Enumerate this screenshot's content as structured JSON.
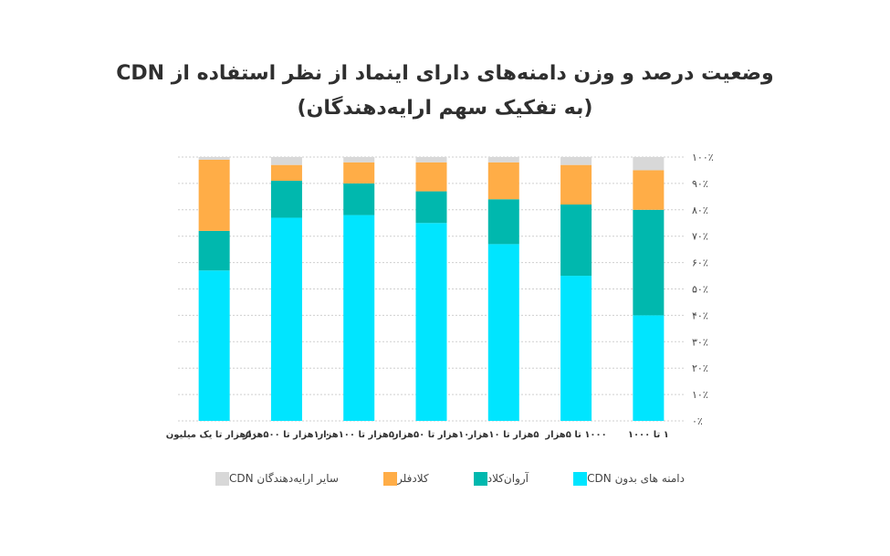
{
  "chart_data": {
    "type": "bar",
    "stacked": true,
    "title": [
      "وضعیت درصد و وزن دامنه‌های دارای اینماد از نظر استفاده از CDN",
      "(به تفکیک سهم ارایه‌دهندگان)"
    ],
    "categories": [
      "۵۰۰هزار تا یک میلیون",
      "۱۰۰هزار تا ۵۰۰هزار",
      "۵۰هزار تا ۱۰۰هزار",
      "۱۰هزار تا ۵۰هزار",
      "۵هزار تا ۱۰هزار",
      "۱۰۰۰ تا ۵هزار",
      "۱ تا ۱۰۰۰"
    ],
    "y_tick_labels": [
      "۰٪",
      "۱۰٪",
      "۲۰٪",
      "۳۰٪",
      "۴۰٪",
      "۵۰٪",
      "۶۰٪",
      "۷۰٪",
      "۸۰٪",
      "۹۰٪",
      "۱۰۰٪"
    ],
    "ylim": [
      0,
      100
    ],
    "grid": true,
    "legend_position": "bottom",
    "series": [
      {
        "name": "دامنه های بدون CDN",
        "color": "#00E5FF",
        "values": [
          57,
          77,
          78,
          75,
          67,
          55,
          40
        ]
      },
      {
        "name": "آروان‌کلاد",
        "color": "#00B8AE",
        "values": [
          15,
          14,
          12,
          12,
          17,
          27,
          40
        ]
      },
      {
        "name": "کلادفلر",
        "color": "#FFAD47",
        "values": [
          27,
          6,
          8,
          11,
          14,
          15,
          15
        ]
      },
      {
        "name": "سایر ارایه‌دهندگان CDN",
        "color": "#D8D8D8",
        "values": [
          1,
          3,
          2,
          2,
          2,
          3,
          5
        ]
      }
    ]
  }
}
